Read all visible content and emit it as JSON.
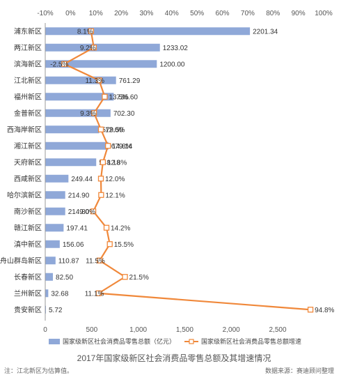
{
  "chart_data": {
    "type": "bar+line",
    "title": "2017年国家级新区社会消费品零售总额及其增速情况",
    "note": "注：江北新区为估算值。",
    "source": "数据来源：赛迪顾问整理",
    "categories": [
      "浦东新区",
      "两江新区",
      "滨海新区",
      "江北新区",
      "福州新区",
      "金普新区",
      "西海岸新区",
      "湘江新区",
      "天府新区",
      "西咸新区",
      "哈尔滨新区",
      "南沙新区",
      "赣江新区",
      "滇中新区",
      "舟山群岛新区",
      "长春新区",
      "兰州新区",
      "贵安新区"
    ],
    "bar_values": [
      2201.34,
      1233.02,
      1200.0,
      761.29,
      736.6,
      702.3,
      579.5,
      679.14,
      548.18,
      249.44,
      214.9,
      214.8,
      197.41,
      156.06,
      110.87,
      82.5,
      32.68,
      5.72
    ],
    "bar_labels": [
      "2201.34",
      "1233.02",
      "1200.00",
      "761.29",
      "736.60",
      "702.30",
      "579.50",
      "679.14",
      "548.18",
      "249.44",
      "214.90",
      "214.80",
      "197.41",
      "156.06",
      "110.87",
      "82.50",
      "32.68",
      "5.72"
    ],
    "growth_values": [
      8.1,
      9.2,
      -2.5,
      11.3,
      13.5,
      9.3,
      12.0,
      14.8,
      12.8,
      12.0,
      12.1,
      9.0,
      14.2,
      15.5,
      11.5,
      21.5,
      11.1,
      94.8
    ],
    "growth_labels": [
      "8.1%",
      "9.2%",
      "-2.5%",
      "11.3%",
      "13.5%",
      "9.3%",
      "12.0%",
      "14.8%",
      "12.8%",
      "12.0%",
      "12.1%",
      "9.0%",
      "14.2%",
      "15.5%",
      "11.5%",
      "21.5%",
      "11.1%",
      "94.8%"
    ],
    "bottom_axis": {
      "min": 0,
      "max": 2500,
      "ticks": [
        0,
        500,
        1000,
        1500,
        2000,
        2500
      ],
      "tick_labels": [
        "0",
        "500",
        "1,000",
        "1,500",
        "2,000",
        "2,500"
      ]
    },
    "top_axis": {
      "min": -10,
      "max": 100,
      "ticks": [
        -10,
        0,
        10,
        20,
        30,
        40,
        50,
        60,
        70,
        80,
        90,
        100
      ],
      "tick_labels": [
        "-10%",
        "0%",
        "10%",
        "20%",
        "30%",
        "40%",
        "50%",
        "60%",
        "70%",
        "80%",
        "90%",
        "100%"
      ]
    },
    "legend": [
      {
        "name": "国家级新区社会消费品零售总额（亿元）",
        "color": "#8fa8d8",
        "kind": "bar"
      },
      {
        "name": "国家级新区社会消费品零售总额增速",
        "color": "#f0883a",
        "kind": "line"
      }
    ],
    "legend_position": "bottom",
    "grid": false
  }
}
